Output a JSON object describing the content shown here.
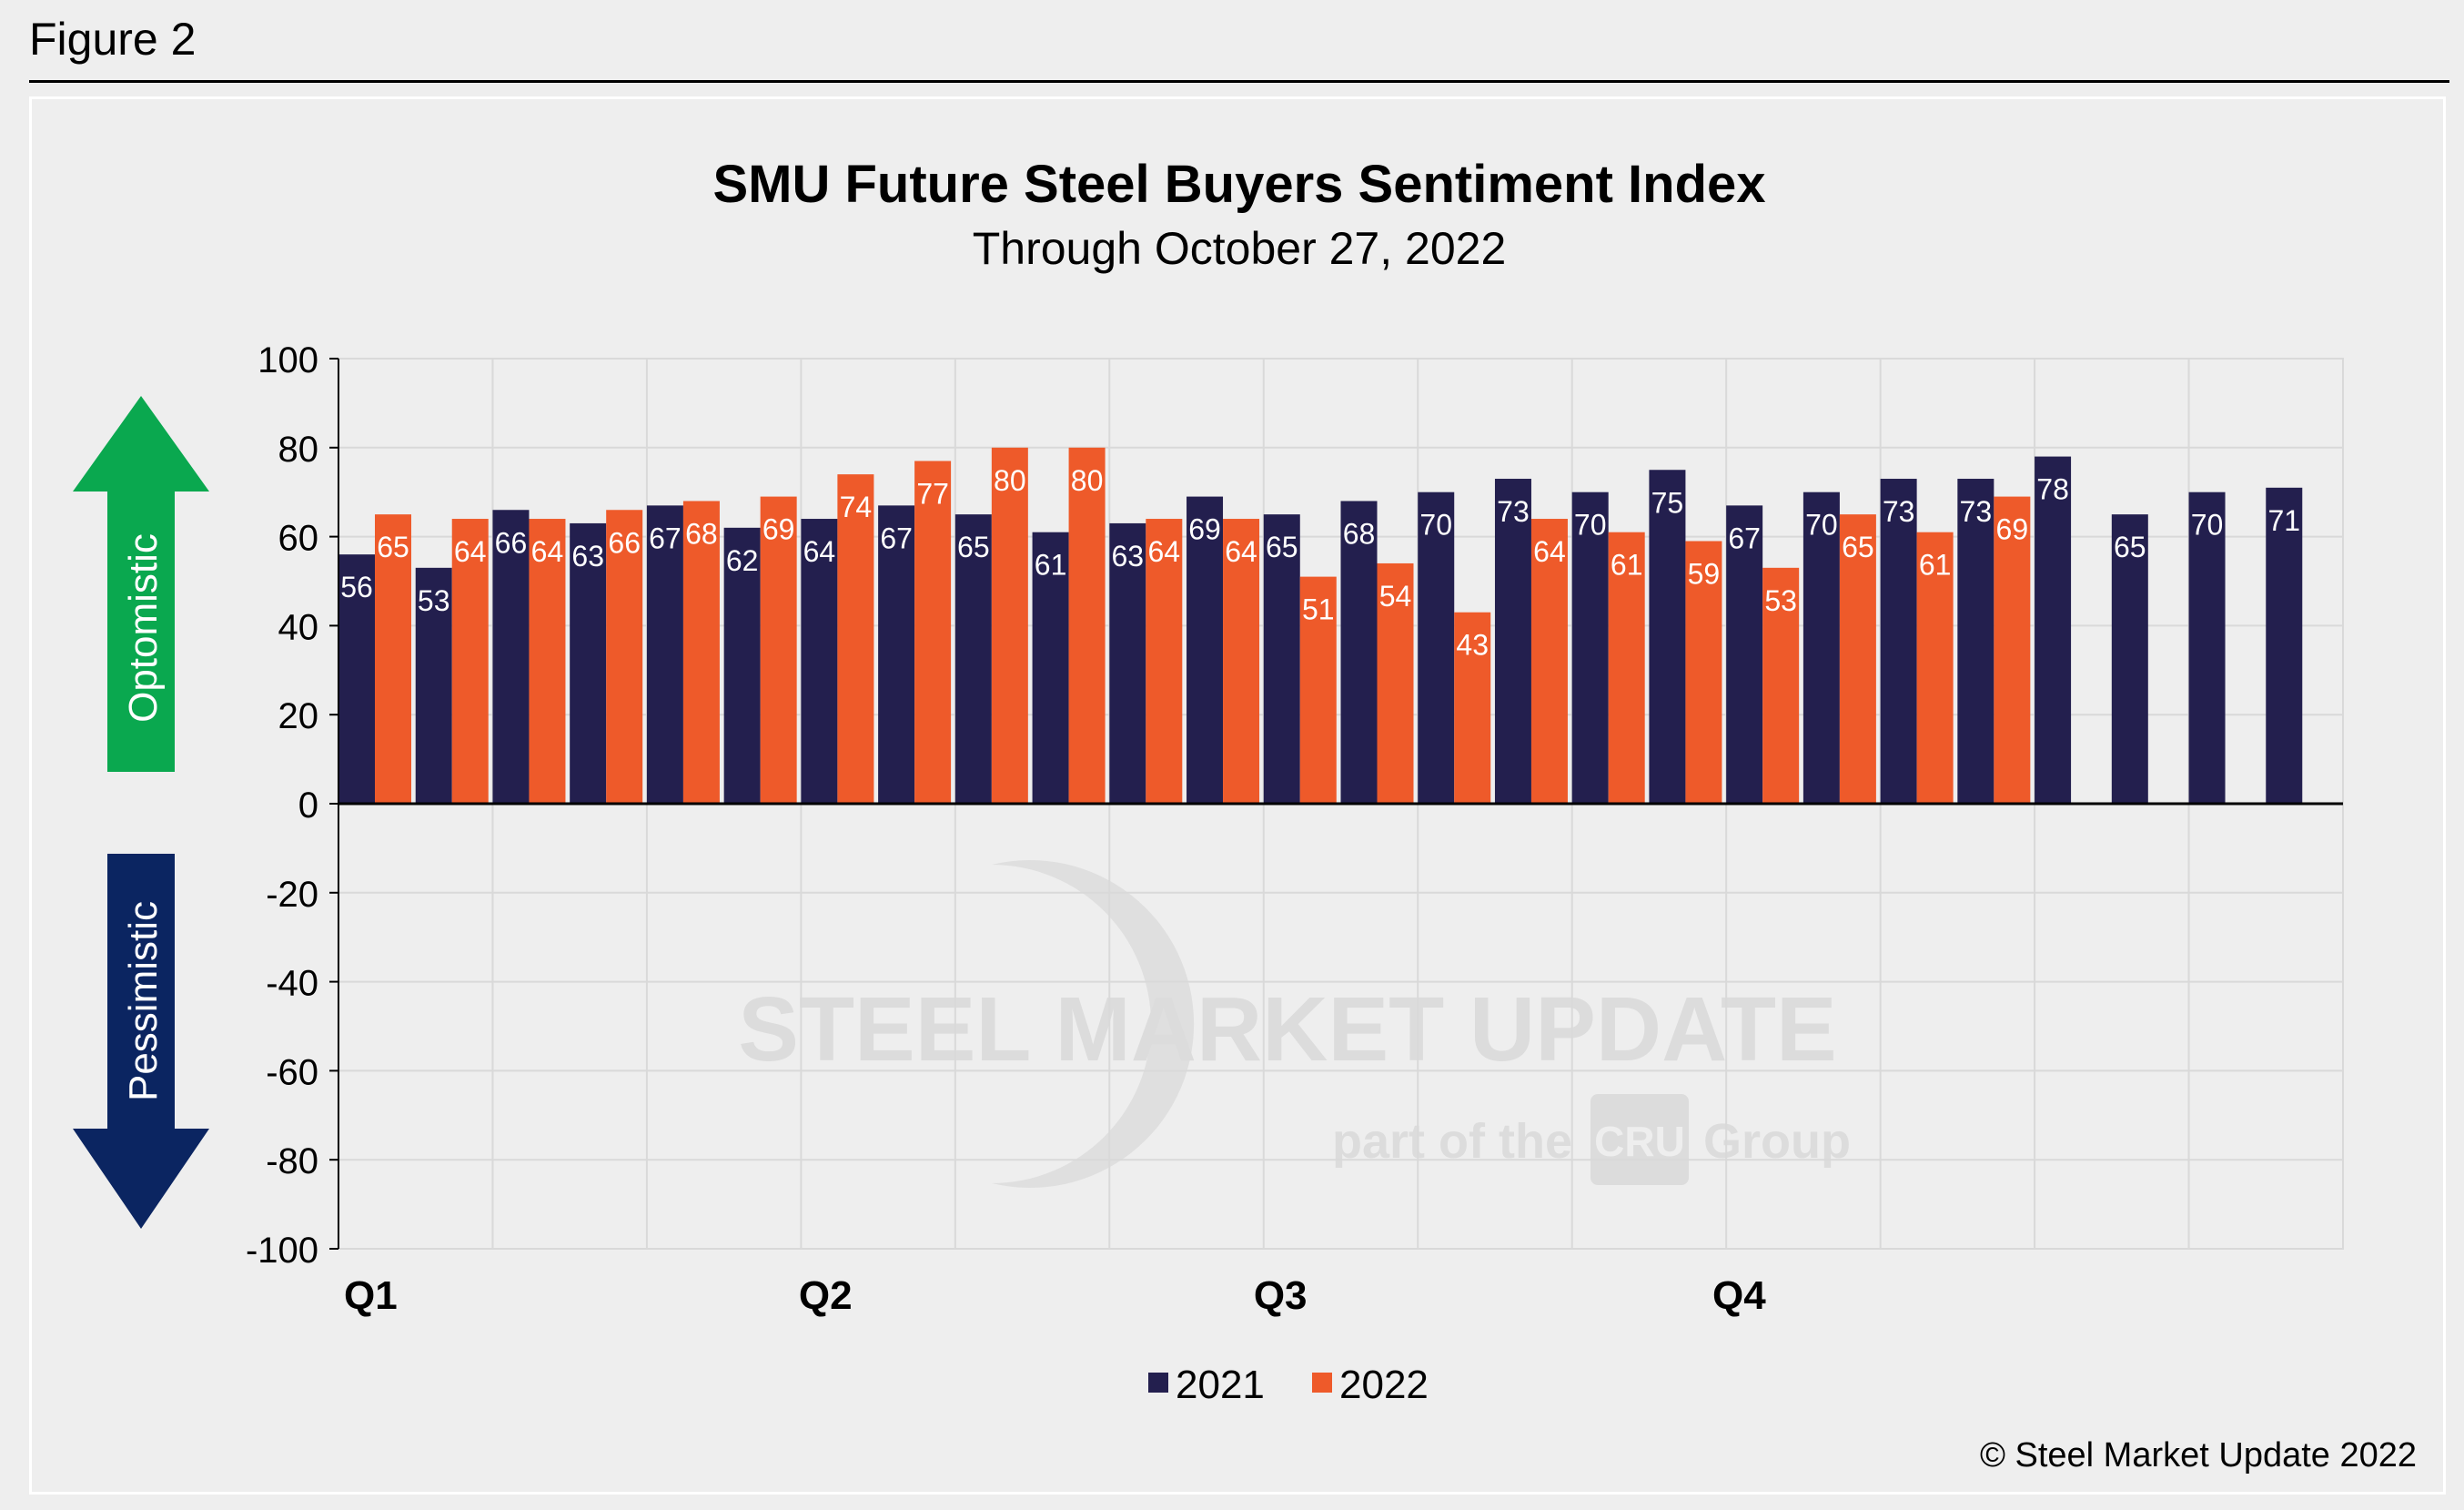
{
  "figure_label": "Figure 2",
  "copyright": "© Steel Market Update 2022",
  "watermark": {
    "line1": "STEEL MARKET UPDATE",
    "line2_prefix": "part of the",
    "line2_logo": "CRU",
    "line2_suffix": "Group"
  },
  "arrows": {
    "up_label": "Optomistic",
    "down_label": "Pessimistic"
  },
  "colors": {
    "series_2021": "#231f4e",
    "series_2022": "#ee5a2a",
    "up_arrow": "#0aa84f",
    "down_arrow": "#0b2561",
    "background": "#eeeeee"
  },
  "chart_data": {
    "type": "bar",
    "title": "SMU Future Steel Buyers Sentiment Index",
    "subtitle": "Through October 27, 2022",
    "xlabel": "",
    "ylabel": "",
    "ylim": [
      -100,
      100
    ],
    "yticks": [
      "100",
      "80",
      "60",
      "40",
      "20",
      "0",
      "-20",
      "-40",
      "-60",
      "-80",
      "-100"
    ],
    "grid": true,
    "legend_position": "bottom",
    "quarter_labels": [
      "Q1",
      "Q2",
      "Q3",
      "Q4"
    ],
    "series": [
      {
        "name": "2021",
        "values": [
          56,
          53,
          66,
          63,
          67,
          62,
          64,
          67,
          65,
          61,
          63,
          69,
          65,
          68,
          70,
          73,
          70,
          75,
          67,
          70,
          73,
          73,
          78,
          65,
          70,
          71
        ]
      },
      {
        "name": "2022",
        "values": [
          65,
          64,
          64,
          66,
          68,
          69,
          74,
          77,
          80,
          80,
          64,
          64,
          51,
          54,
          43,
          64,
          61,
          59,
          53,
          65,
          61,
          69,
          null,
          null,
          null,
          null
        ]
      }
    ]
  }
}
